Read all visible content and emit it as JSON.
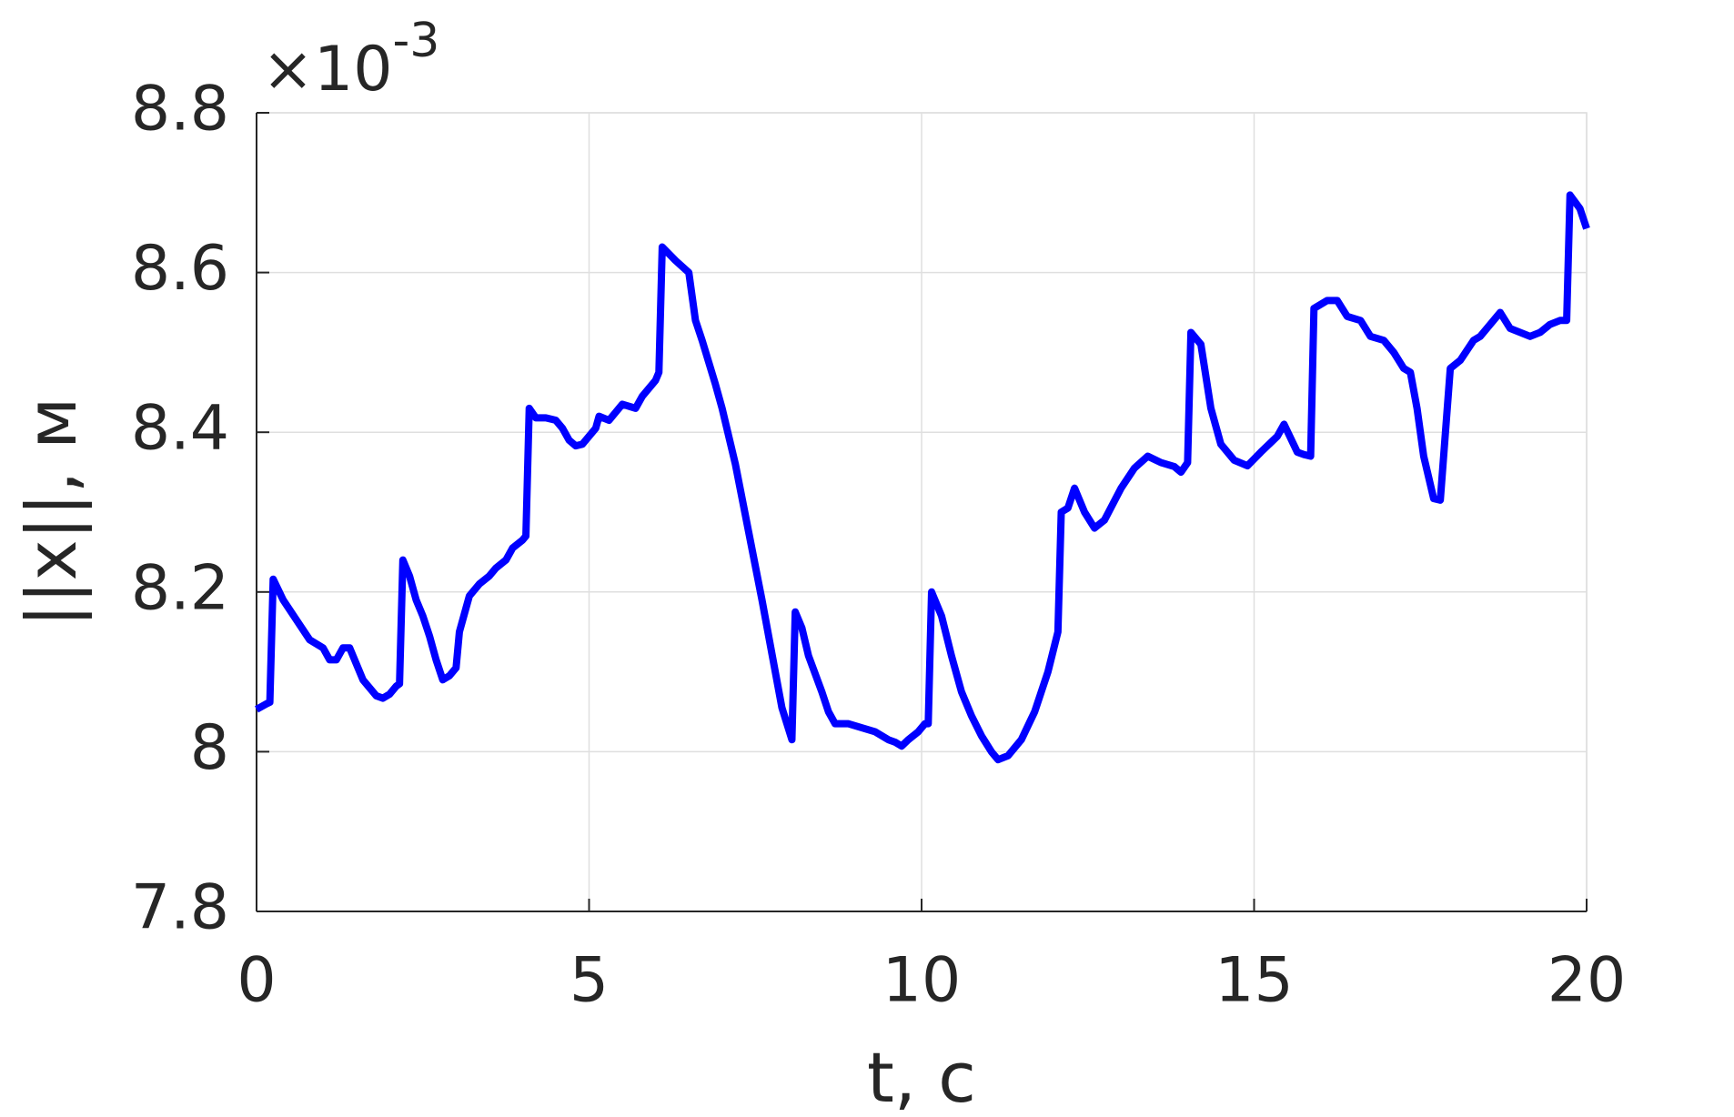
{
  "chart_data": {
    "type": "line",
    "xlabel": "t, c",
    "ylabel": "||x||, м",
    "y_multiplier": {
      "base": "×10",
      "exponent": "-3"
    },
    "x": [
      0,
      0.15,
      0.2,
      0.25,
      0.4,
      0.6,
      0.8,
      1.0,
      1.1,
      1.2,
      1.3,
      1.4,
      1.5,
      1.6,
      1.7,
      1.8,
      1.9,
      2.0,
      2.1,
      2.15,
      2.2,
      2.3,
      2.4,
      2.5,
      2.6,
      2.7,
      2.8,
      2.9,
      3.0,
      3.05,
      3.2,
      3.35,
      3.5,
      3.6,
      3.75,
      3.85,
      4.0,
      4.05,
      4.1,
      4.2,
      4.35,
      4.5,
      4.6,
      4.7,
      4.8,
      4.9,
      5.0,
      5.1,
      5.15,
      5.3,
      5.4,
      5.5,
      5.7,
      5.8,
      6.0,
      6.05,
      6.1,
      6.3,
      6.5,
      6.6,
      6.7,
      6.9,
      7.0,
      7.2,
      7.4,
      7.6,
      7.8,
      7.9,
      8.05,
      8.1,
      8.2,
      8.3,
      8.5,
      8.6,
      8.7,
      8.9,
      9.1,
      9.3,
      9.5,
      9.6,
      9.7,
      9.8,
      9.95,
      10.05,
      10.1,
      10.15,
      10.3,
      10.45,
      10.6,
      10.75,
      10.9,
      11.05,
      11.15,
      11.3,
      11.5,
      11.7,
      11.9,
      12.05,
      12.1,
      12.2,
      12.3,
      12.45,
      12.6,
      12.75,
      13.0,
      13.2,
      13.4,
      13.6,
      13.8,
      13.9,
      14.0,
      14.05,
      14.2,
      14.35,
      14.5,
      14.7,
      14.9,
      15.1,
      15.35,
      15.45,
      15.65,
      15.75,
      15.85,
      15.9,
      16.1,
      16.25,
      16.4,
      16.6,
      16.75,
      16.95,
      17.1,
      17.25,
      17.35,
      17.45,
      17.55,
      17.7,
      17.8,
      17.95,
      18.1,
      18.3,
      18.4,
      18.6,
      18.7,
      18.85,
      19.0,
      19.15,
      19.3,
      19.45,
      19.6,
      19.7,
      19.75,
      19.9,
      20
    ],
    "series": [
      {
        "name": "||x||",
        "color": "#0000ff",
        "values": [
          8.053,
          8.06,
          8.062,
          8.216,
          8.19,
          8.165,
          8.14,
          8.13,
          8.115,
          8.115,
          8.13,
          8.13,
          8.11,
          8.09,
          8.08,
          8.07,
          8.067,
          8.072,
          8.082,
          8.085,
          8.24,
          8.22,
          8.19,
          8.17,
          8.145,
          8.115,
          8.09,
          8.095,
          8.105,
          8.15,
          8.195,
          8.21,
          8.22,
          8.23,
          8.24,
          8.255,
          8.265,
          8.27,
          8.43,
          8.418,
          8.418,
          8.415,
          8.405,
          8.39,
          8.383,
          8.385,
          8.395,
          8.405,
          8.42,
          8.415,
          8.425,
          8.435,
          8.43,
          8.445,
          8.465,
          8.475,
          8.632,
          8.615,
          8.6,
          8.54,
          8.515,
          8.46,
          8.43,
          8.36,
          8.275,
          8.19,
          8.1,
          8.055,
          8.015,
          8.175,
          8.155,
          8.12,
          8.075,
          8.05,
          8.035,
          8.035,
          8.03,
          8.025,
          8.015,
          8.012,
          8.007,
          8.015,
          8.025,
          8.035,
          8.035,
          8.2,
          8.17,
          8.12,
          8.075,
          8.045,
          8.02,
          8.0,
          7.99,
          7.995,
          8.015,
          8.05,
          8.1,
          8.15,
          8.3,
          8.305,
          8.33,
          8.3,
          8.28,
          8.29,
          8.33,
          8.355,
          8.37,
          8.362,
          8.357,
          8.35,
          8.362,
          8.525,
          8.51,
          8.43,
          8.385,
          8.365,
          8.358,
          8.375,
          8.395,
          8.41,
          8.375,
          8.372,
          8.37,
          8.555,
          8.565,
          8.565,
          8.545,
          8.54,
          8.52,
          8.515,
          8.5,
          8.48,
          8.475,
          8.43,
          8.37,
          8.317,
          8.315,
          8.48,
          8.49,
          8.515,
          8.52,
          8.54,
          8.55,
          8.53,
          8.525,
          8.52,
          8.525,
          8.535,
          8.54,
          8.54,
          8.697,
          8.68,
          8.655
        ]
      }
    ],
    "xlim": [
      0,
      20
    ],
    "xticks": [
      0,
      5,
      10,
      15,
      20
    ],
    "ylim": [
      7.8,
      8.8
    ],
    "yticks": [
      7.8,
      8,
      8.2,
      8.4,
      8.6,
      8.8
    ],
    "grid": true
  }
}
